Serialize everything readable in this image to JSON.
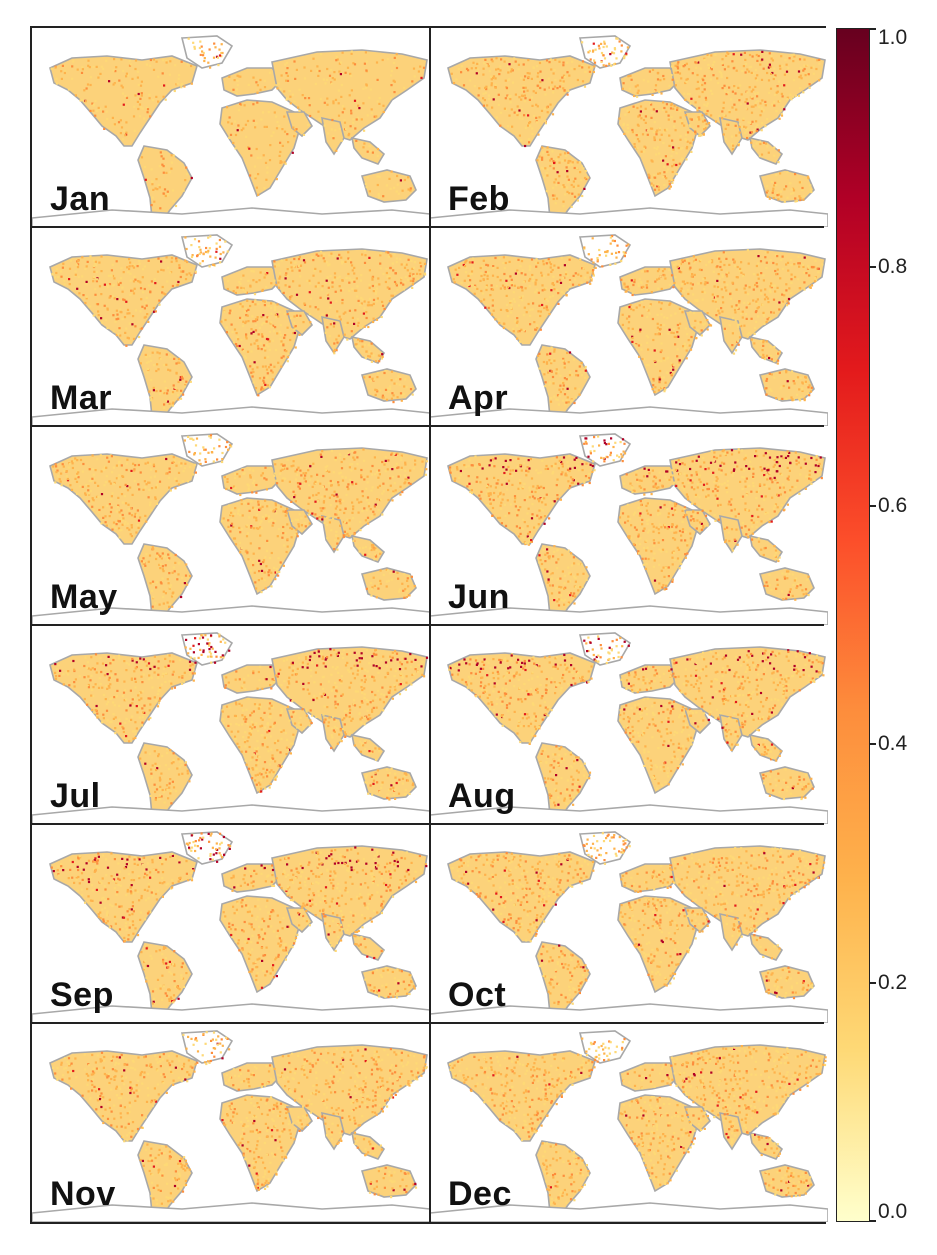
{
  "panels": [
    {
      "month": "Jan"
    },
    {
      "month": "Feb"
    },
    {
      "month": "Mar"
    },
    {
      "month": "Apr"
    },
    {
      "month": "May"
    },
    {
      "month": "Jun"
    },
    {
      "month": "Jul"
    },
    {
      "month": "Aug"
    },
    {
      "month": "Sep"
    },
    {
      "month": "Oct"
    },
    {
      "month": "Nov"
    },
    {
      "month": "Dec"
    }
  ],
  "colorbar": {
    "min": 0.0,
    "max": 1.0,
    "ticks": [
      "0.0",
      "0.2",
      "0.4",
      "0.6",
      "0.8",
      "1.0"
    ],
    "tick_values": [
      0.0,
      0.2,
      0.4,
      0.6,
      0.8,
      1.0
    ],
    "colors": [
      "#ffffcc",
      "#fed976",
      "#feb24c",
      "#fd8d3c",
      "#fc4e2a",
      "#e31a1c",
      "#b10026",
      "#67001f"
    ]
  },
  "style": {
    "coastline_color": "#a8a8a8",
    "land_base_color": "#fcd27a",
    "hotspot_color": "#9a0f1f"
  }
}
